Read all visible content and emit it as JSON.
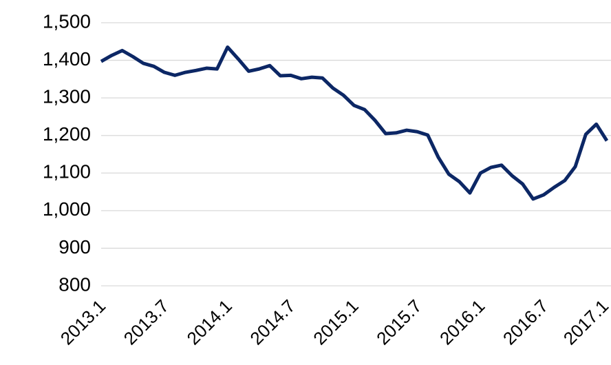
{
  "chart_data": {
    "type": "line",
    "categories": [
      "2013.1",
      null,
      null,
      null,
      null,
      null,
      "2013.7",
      null,
      null,
      null,
      null,
      null,
      "2014.1",
      null,
      null,
      null,
      null,
      null,
      "2014.7",
      null,
      null,
      null,
      null,
      null,
      "2015.1",
      null,
      null,
      null,
      null,
      null,
      "2015.7",
      null,
      null,
      null,
      null,
      null,
      "2016.1",
      null,
      null,
      null,
      null,
      null,
      "2016.7",
      null,
      null,
      null,
      null,
      null,
      "2017.1"
    ],
    "values": [
      1397,
      1413,
      1426,
      1410,
      1392,
      1384,
      1368,
      1360,
      1368,
      1373,
      1379,
      1377,
      1435,
      1404,
      1371,
      1377,
      1386,
      1359,
      1360,
      1351,
      1355,
      1353,
      1326,
      1307,
      1280,
      1269,
      1240,
      1205,
      1207,
      1214,
      1210,
      1201,
      1142,
      1097,
      1077,
      1047,
      1100,
      1115,
      1121,
      1093,
      1071,
      1031,
      1042,
      1062,
      1080,
      1117,
      1203,
      1230,
      1186
    ],
    "color": "#0c2765",
    "ylim": [
      800,
      1500
    ],
    "yticks": [
      800,
      900,
      {
        "value": 1000,
        "label": "1,000"
      },
      {
        "value": 1100,
        "label": "1,100"
      },
      {
        "value": 1200,
        "label": "1,200"
      },
      {
        "value": 1300,
        "label": "1,300"
      },
      {
        "value": 1400,
        "label": "1,400"
      },
      {
        "value": 1500,
        "label": "1,500"
      }
    ],
    "grid": true
  }
}
